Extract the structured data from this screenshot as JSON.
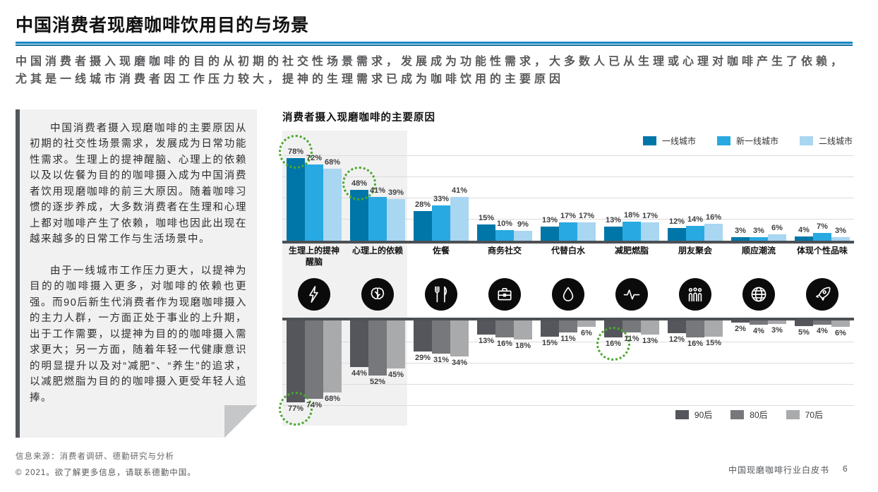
{
  "page": {
    "title": "中国消费者现磨咖啡饮用目的与场景",
    "subtitle": "中国消费者摄入现磨咖啡的目的从初期的社交性场景需求，发展成为功能性需求，大多数人已从生理或心理对咖啡产生了依赖，尤其是一线城市消费者因工作压力较大，提神的生理需求已成为咖啡饮用的主要原因"
  },
  "colors": {
    "accent_blue": "#0076A8",
    "highlight_green": "#4EA72E",
    "axis_gray": "#4D5054",
    "band_gray": "#F1F1F2"
  },
  "commentary": {
    "paragraph1": "中国消费者摄入现磨咖啡的主要原因从初期的社交性场景需求，发展成为日常功能性需求。生理上的提神醒脑、心理上的依赖以及以佐餐为目的的咖啡摄入成为中国消费者饮用现磨咖啡的前三大原因。随着咖啡习惯的逐步养成，大多数消费者在生理和心理上都对咖啡产生了依赖，咖啡也因此出现在越来越多的日常工作与生活场景中。",
    "paragraph2": "由于一线城市工作压力更大，以提神为目的的咖啡摄入更多，对咖啡的依赖也更强。而90后新生代消费者作为现磨咖啡摄入的主力人群，一方面正处于事业的上升期，出于工作需要，以提神为目的的咖啡摄入需求更大；另一方面，随着年轻一代健康意识的明显提升以及对“减肥”、“养生”的追求，以减肥燃脂为目的的咖啡摄入更受年轻人追捧。"
  },
  "category_icons": [
    "lightning-icon",
    "brain-icon",
    "cutlery-icon",
    "briefcase-icon",
    "droplet-icon",
    "pulse-icon",
    "people-icon",
    "globe-icon",
    "rocket-icon"
  ],
  "chart_data": [
    {
      "type": "bar",
      "direction": "up",
      "title": "消费者摄入现磨咖啡的主要原因",
      "unit": "%",
      "categories": [
        "生理上的提神醒脑",
        "心理上的依赖",
        "佐餐",
        "商务社交",
        "代替白水",
        "减肥燃脂",
        "朋友聚会",
        "顺应潮流",
        "体现个性品味"
      ],
      "series": [
        {
          "name": "一线城市",
          "color": "#0076A8",
          "values": [
            78,
            48,
            28,
            15,
            13,
            13,
            12,
            3,
            4
          ]
        },
        {
          "name": "新一线城市",
          "color": "#29A9E1",
          "values": [
            72,
            41,
            33,
            10,
            17,
            18,
            14,
            3,
            7
          ]
        },
        {
          "name": "二线城市",
          "color": "#A9D6F1",
          "values": [
            68,
            39,
            41,
            9,
            17,
            17,
            16,
            6,
            3
          ]
        }
      ],
      "ylim": [
        0,
        85
      ],
      "grid": true,
      "legend_position": "top-right",
      "highlights": [
        {
          "group": 0,
          "series": 0
        },
        {
          "group": 1,
          "series": 0
        }
      ],
      "highlight_band_categories": [
        "生理上的提神醒脑",
        "心理上的依赖"
      ]
    },
    {
      "type": "bar",
      "direction": "down",
      "title": "",
      "unit": "%",
      "categories": [
        "生理上的提神醒脑",
        "心理上的依赖",
        "佐餐",
        "商务社交",
        "代替白水",
        "减肥燃脂",
        "朋友聚会",
        "顺应潮流",
        "体现个性品味"
      ],
      "series": [
        {
          "name": "90后",
          "color": "#54565B",
          "values": [
            77,
            44,
            29,
            13,
            15,
            16,
            12,
            2,
            5
          ]
        },
        {
          "name": "80后",
          "color": "#76787B",
          "values": [
            74,
            52,
            31,
            16,
            11,
            11,
            16,
            4,
            4
          ]
        },
        {
          "name": "70后",
          "color": "#A9AAAC",
          "values": [
            68,
            45,
            34,
            18,
            6,
            13,
            15,
            3,
            6
          ]
        }
      ],
      "ylim": [
        0,
        85
      ],
      "grid": true,
      "legend_position": "bottom-right",
      "highlights": [
        {
          "group": 0,
          "series": 0
        },
        {
          "group": 5,
          "series": 0
        }
      ]
    }
  ],
  "footer": {
    "source": "信息来源：消费者调研、德勤研究与分析",
    "copyright": "© 2021。欲了解更多信息，请联系德勤中国。",
    "doc_title": "中国现磨咖啡行业白皮书",
    "page_number": "6"
  }
}
